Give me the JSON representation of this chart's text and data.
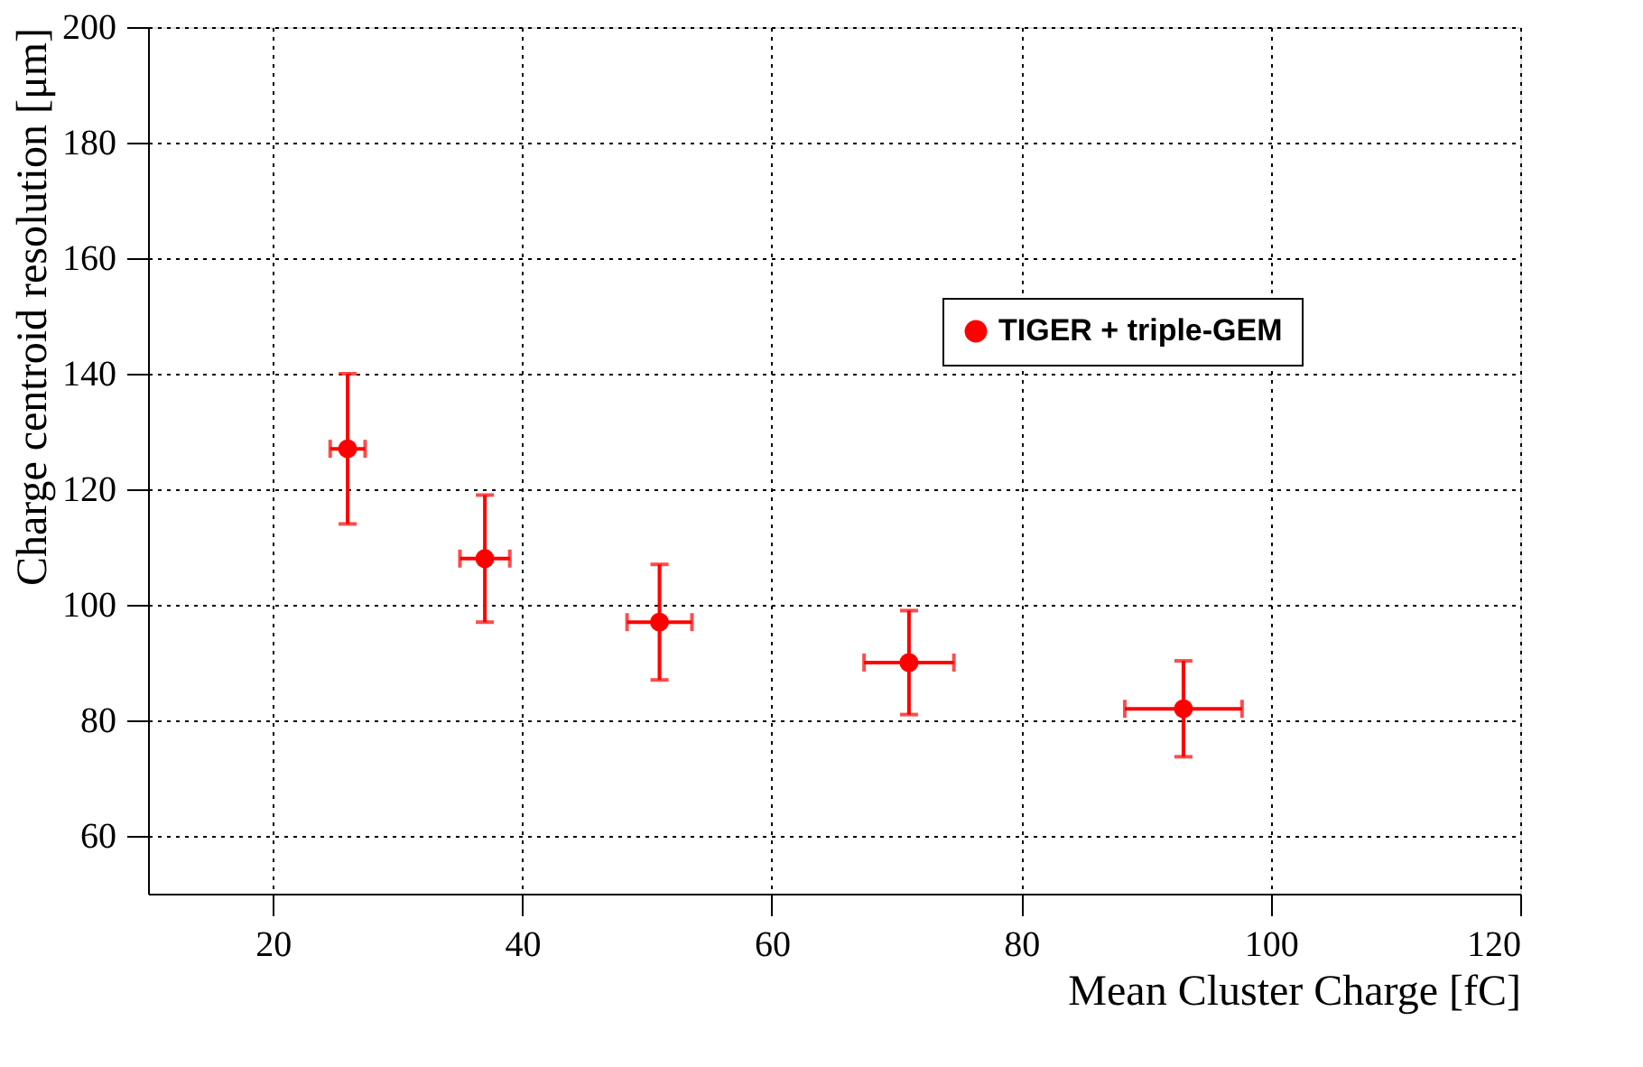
{
  "chart_data": {
    "type": "scatter",
    "xlabel": "Mean Cluster Charge [fC]",
    "ylabel": "Charge centroid resolution [μm]",
    "x": [
      26,
      37,
      51,
      71,
      93
    ],
    "series": [
      {
        "name": "TIGER + triple-GEM",
        "color": "#ff0000",
        "values": [
          127,
          108,
          97,
          90,
          82
        ],
        "errors": [
          13,
          11,
          10,
          9,
          8.3
        ],
        "xerrors": [
          1.4,
          2,
          2.6,
          3.6,
          4.7
        ]
      }
    ],
    "xlim": [
      10,
      120
    ],
    "xticks": [
      20,
      40,
      60,
      80,
      100,
      120
    ],
    "ylim": [
      50,
      200
    ],
    "yticks": [
      60,
      80,
      100,
      120,
      140,
      160,
      180,
      200
    ],
    "grid": true,
    "legend": "top right",
    "marker": "circle"
  }
}
